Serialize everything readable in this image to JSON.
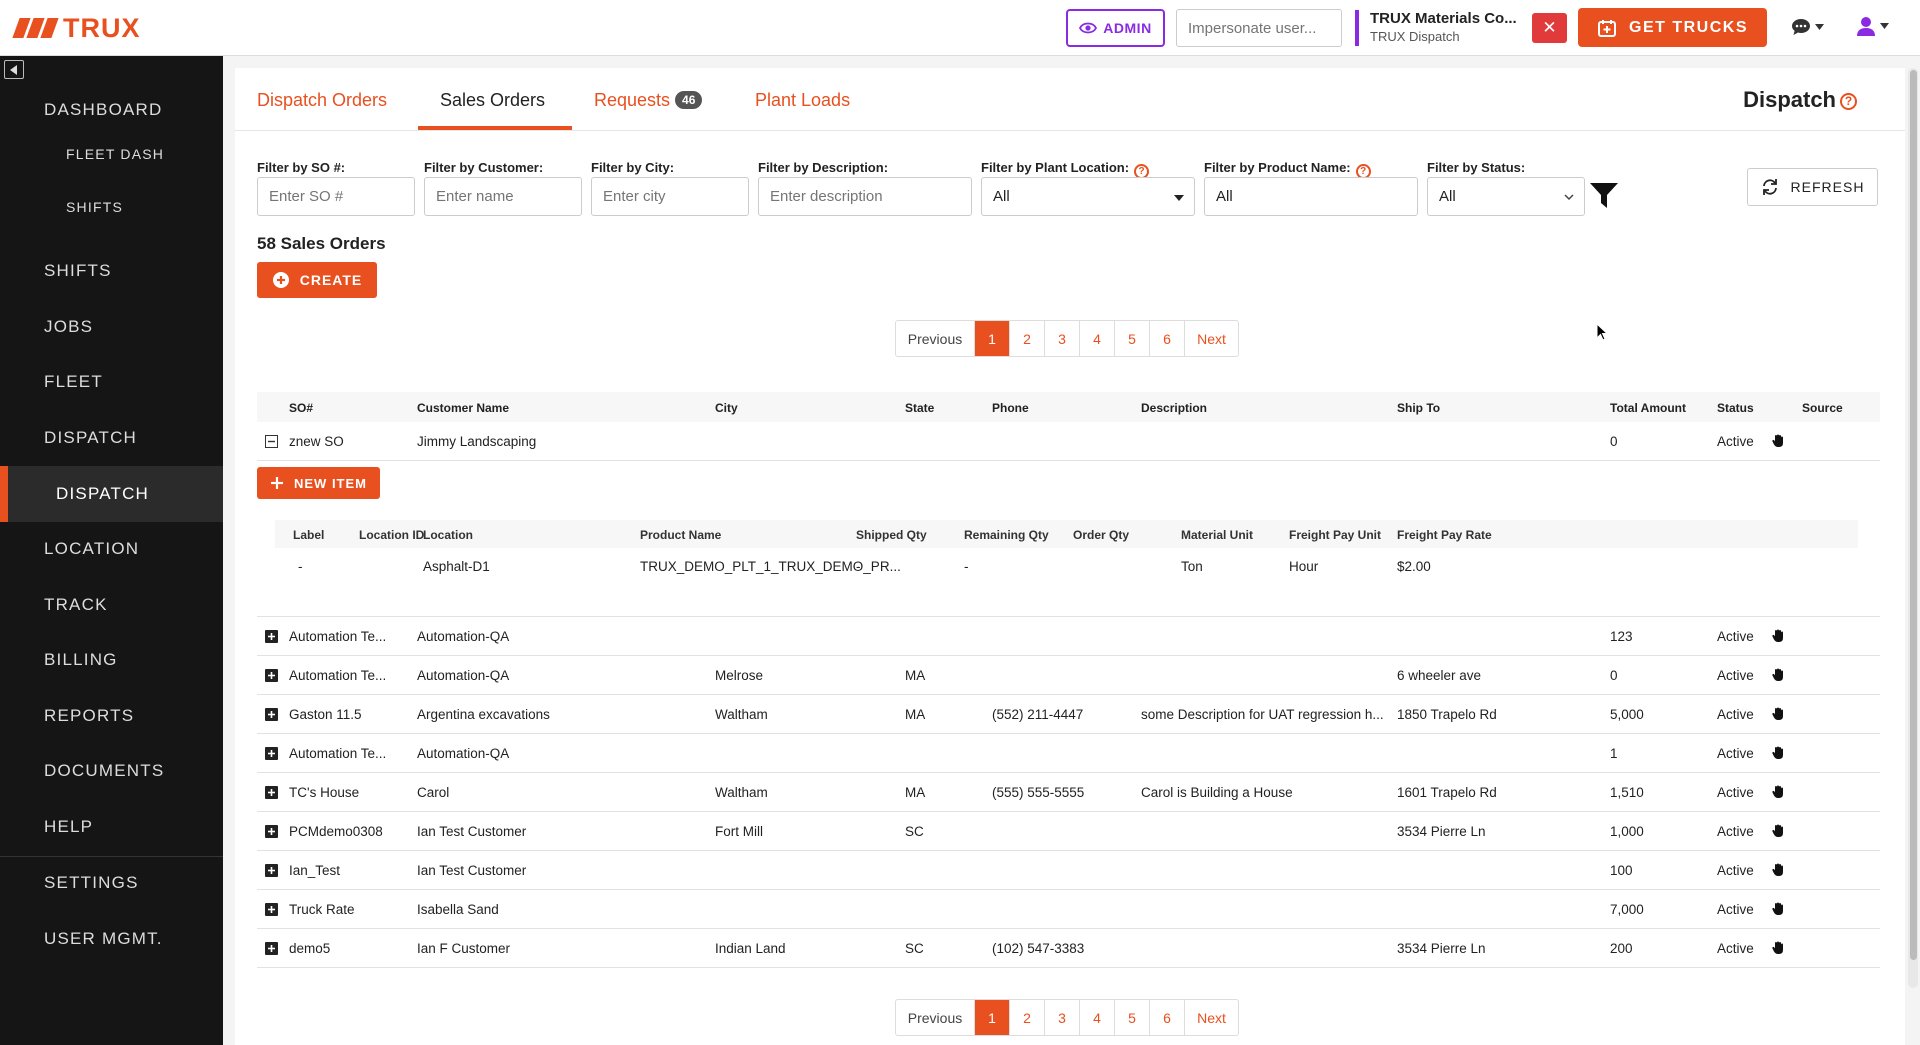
{
  "header": {
    "logo_text": "TRUX",
    "admin_label": "ADMIN",
    "impersonate_placeholder": "Impersonate user...",
    "company_name": "TRUX Materials Co...",
    "company_sub": "TRUX Dispatch",
    "close_label": "✕",
    "get_trucks_label": "GET TRUCKS"
  },
  "sidebar": {
    "items": [
      {
        "label": "DASHBOARD"
      },
      {
        "label": "FLEET DASH"
      },
      {
        "label": "SHIFTS"
      },
      {
        "label": "SHIFTS"
      },
      {
        "label": "JOBS"
      },
      {
        "label": "FLEET"
      },
      {
        "label": "DISPATCH"
      },
      {
        "label": "DISPATCH"
      },
      {
        "label": "LOCATION"
      },
      {
        "label": "TRACK"
      },
      {
        "label": "BILLING"
      },
      {
        "label": "REPORTS"
      },
      {
        "label": "DOCUMENTS"
      },
      {
        "label": "HELP"
      },
      {
        "label": "SETTINGS"
      },
      {
        "label": "USER MGMT."
      }
    ]
  },
  "tabs": [
    {
      "label": "Dispatch Orders"
    },
    {
      "label": "Sales Orders"
    },
    {
      "label": "Requests",
      "badge": "46"
    },
    {
      "label": "Plant Loads"
    }
  ],
  "page_title": "Dispatch",
  "help_glyph": "?",
  "filters": {
    "so": {
      "label": "Filter by SO #:",
      "placeholder": "Enter SO #"
    },
    "customer": {
      "label": "Filter by Customer:",
      "placeholder": "Enter name"
    },
    "city": {
      "label": "Filter by City:",
      "placeholder": "Enter city"
    },
    "description": {
      "label": "Filter by Description:",
      "placeholder": "Enter description"
    },
    "plant_location": {
      "label": "Filter by Plant Location:",
      "value": "All"
    },
    "product_name": {
      "label": "Filter by Product Name:",
      "value": "All"
    },
    "status": {
      "label": "Filter by Status:",
      "value": "All"
    }
  },
  "refresh_label": "REFRESH",
  "count_title": "58 Sales Orders",
  "create_label": "CREATE",
  "pagination": {
    "previous": "Previous",
    "pages": [
      "1",
      "2",
      "3",
      "4",
      "5",
      "6"
    ],
    "next": "Next",
    "current": "1"
  },
  "table": {
    "columns": [
      "SO#",
      "Customer Name",
      "City",
      "State",
      "Phone",
      "Description",
      "Ship To",
      "Total Amount",
      "Status",
      "Source"
    ],
    "expanded_row": {
      "so": "znew SO",
      "customer": "Jimmy Landscaping",
      "city": "",
      "state": "",
      "phone": "",
      "description": "",
      "ship_to": "",
      "total": "0",
      "status": "Active"
    },
    "rows": [
      {
        "so": "Automation Te...",
        "customer": "Automation-QA",
        "city": "",
        "state": "",
        "phone": "",
        "description": "",
        "ship_to": "",
        "total": "123",
        "status": "Active"
      },
      {
        "so": "Automation Te...",
        "customer": "Automation-QA",
        "city": "Melrose",
        "state": "MA",
        "phone": "",
        "description": "",
        "ship_to": "6 wheeler ave",
        "total": "0",
        "status": "Active"
      },
      {
        "so": "Gaston 11.5",
        "customer": "Argentina excavations",
        "city": "Waltham",
        "state": "MA",
        "phone": "(552) 211-4447",
        "description": "some Description for UAT regression h...",
        "ship_to": "1850 Trapelo Rd",
        "total": "5,000",
        "status": "Active"
      },
      {
        "so": "Automation Te...",
        "customer": "Automation-QA",
        "city": "",
        "state": "",
        "phone": "",
        "description": "",
        "ship_to": "",
        "total": "1",
        "status": "Active"
      },
      {
        "so": "TC's House",
        "customer": "Carol",
        "city": "Waltham",
        "state": "MA",
        "phone": "(555) 555-5555",
        "description": "Carol is Building a House",
        "ship_to": "1601 Trapelo Rd",
        "total": "1,510",
        "status": "Active"
      },
      {
        "so": "PCMdemo0308",
        "customer": "Ian Test Customer",
        "city": "Fort Mill",
        "state": "SC",
        "phone": "",
        "description": "",
        "ship_to": "3534 Pierre Ln",
        "total": "1,000",
        "status": "Active"
      },
      {
        "so": "Ian_Test",
        "customer": "Ian Test Customer",
        "city": "",
        "state": "",
        "phone": "",
        "description": "",
        "ship_to": "",
        "total": "100",
        "status": "Active"
      },
      {
        "so": "Truck Rate",
        "customer": "Isabella Sand",
        "city": "",
        "state": "",
        "phone": "",
        "description": "",
        "ship_to": "",
        "total": "7,000",
        "status": "Active"
      },
      {
        "so": "demo5",
        "customer": "Ian F Customer",
        "city": "Indian Land",
        "state": "SC",
        "phone": "(102) 547-3383",
        "description": "",
        "ship_to": "3534 Pierre Ln",
        "total": "200",
        "status": "Active"
      }
    ]
  },
  "new_item_label": "NEW ITEM",
  "items_table": {
    "columns": [
      "Label",
      "Location ID",
      "Location",
      "Product Name",
      "Shipped Qty",
      "Remaining Qty",
      "Order Qty",
      "Material Unit",
      "Freight Pay Unit",
      "Freight Pay Rate"
    ],
    "rows": [
      {
        "label": "-",
        "location_id": "",
        "location": "Asphalt-D1",
        "product": "TRUX_DEMO_PLT_1_TRUX_DEMO_PR...",
        "shipped": "-",
        "remaining": "-",
        "order": "",
        "material_unit": "Ton",
        "freight_unit": "Hour",
        "freight_rate": "$2.00"
      }
    ]
  },
  "colors": {
    "accent": "#e8501f",
    "admin": "#8a2be2",
    "sidebar_bg": "#151515",
    "danger": "#e03a3a"
  },
  "icons": {
    "admin": "eye-icon",
    "get_trucks": "calendar-plus-icon",
    "chat": "chat-icon",
    "user": "user-icon",
    "refresh": "refresh-icon",
    "filter": "funnel-icon",
    "source": "hand-icon",
    "create": "plus-circle-icon"
  }
}
